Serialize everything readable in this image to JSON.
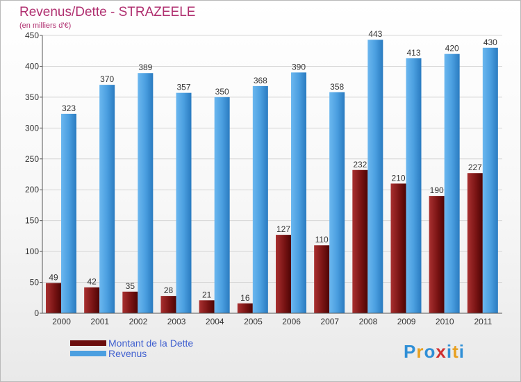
{
  "title": "Revenus/Dette - STRAZEELE",
  "subtitle": "(en milliers d'€)",
  "colors": {
    "debt": "#8b1a1a",
    "revenue": "#4b9fe0",
    "title": "#b03070",
    "legend_text": "#3f5fcf"
  },
  "legend": [
    {
      "label": "Montant de la Dette",
      "color": "#6b0d0d"
    },
    {
      "label": "Revenus",
      "color": "#4b9fe0"
    }
  ],
  "logo": {
    "text": "Proxiti",
    "letter_colors": [
      "#2f8fd6",
      "#e8a020",
      "#2f8fd6",
      "#d03030",
      "#2f8fd6",
      "#e8a020",
      "#2f8fd6"
    ]
  },
  "chart_data": {
    "type": "bar",
    "categories": [
      "2000",
      "2001",
      "2002",
      "2003",
      "2004",
      "2005",
      "2006",
      "2007",
      "2008",
      "2009",
      "2010",
      "2011"
    ],
    "series": [
      {
        "name": "Montant de la Dette",
        "values": [
          49,
          42,
          35,
          28,
          21,
          16,
          127,
          110,
          232,
          210,
          190,
          227
        ]
      },
      {
        "name": "Revenus",
        "values": [
          323,
          370,
          389,
          357,
          350,
          368,
          390,
          358,
          443,
          413,
          420,
          430
        ]
      }
    ],
    "ylim": [
      0,
      450
    ],
    "yticks": [
      0,
      50,
      100,
      150,
      200,
      250,
      300,
      350,
      400,
      450
    ],
    "grid": true,
    "legend_position": "bottom-left"
  }
}
